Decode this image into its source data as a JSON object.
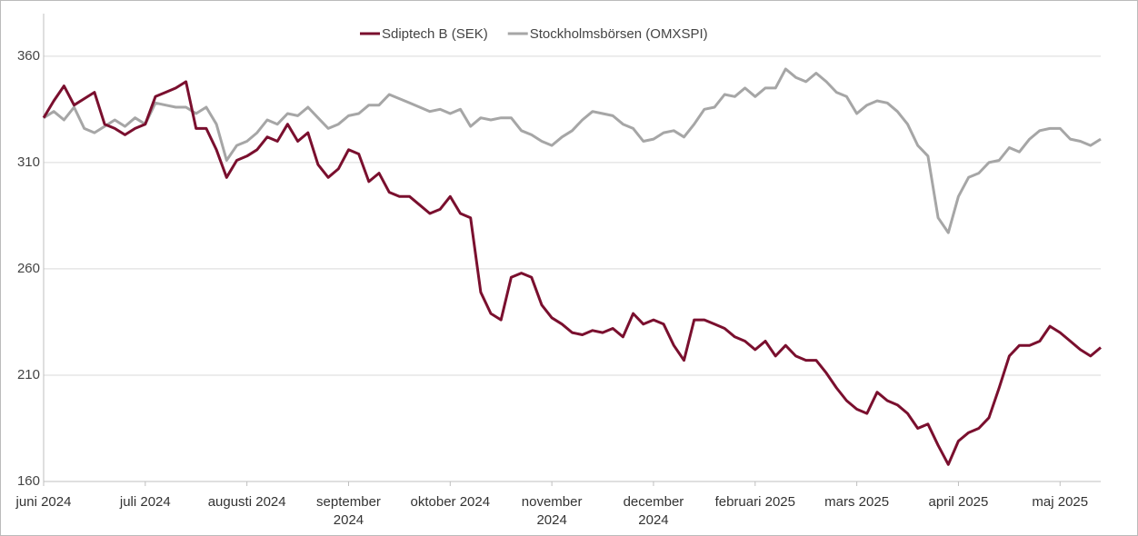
{
  "chart_data": {
    "type": "line",
    "categories": [
      "juni 2024",
      null,
      null,
      null,
      null,
      null,
      null,
      null,
      null,
      null,
      "juli 2024",
      null,
      null,
      null,
      null,
      null,
      null,
      null,
      null,
      null,
      "augusti 2024",
      null,
      null,
      null,
      null,
      null,
      null,
      null,
      null,
      null,
      "september\n2024",
      null,
      null,
      null,
      null,
      null,
      null,
      null,
      null,
      null,
      "oktober 2024",
      null,
      null,
      null,
      null,
      null,
      null,
      null,
      null,
      null,
      "november\n2024",
      null,
      null,
      null,
      null,
      null,
      null,
      null,
      null,
      null,
      "december\n2024",
      null,
      null,
      null,
      null,
      null,
      null,
      null,
      null,
      null,
      "februari 2025",
      null,
      null,
      null,
      null,
      null,
      null,
      null,
      null,
      null,
      "mars 2025",
      null,
      null,
      null,
      null,
      null,
      null,
      null,
      null,
      null,
      "april 2025",
      null,
      null,
      null,
      null,
      null,
      null,
      null,
      null,
      null,
      "maj 2025",
      null,
      null,
      null,
      null
    ],
    "series": [
      {
        "name": "Sdiptech B (SEK)",
        "color": "#7a0f2e",
        "values": [
          331,
          339,
          346,
          337,
          340,
          343,
          328,
          326,
          323,
          326,
          328,
          341,
          343,
          345,
          348,
          326,
          326,
          316,
          303,
          311,
          313,
          316,
          322,
          320,
          328,
          320,
          324,
          309,
          303,
          307,
          316,
          314,
          301,
          305,
          296,
          294,
          294,
          290,
          286,
          288,
          294,
          286,
          284,
          249,
          239,
          236,
          256,
          258,
          256,
          243,
          237,
          234,
          230,
          229,
          231,
          230,
          232,
          228,
          239,
          234,
          236,
          234,
          224,
          217,
          236,
          236,
          234,
          232,
          228,
          226,
          222,
          226,
          219,
          224,
          219,
          217,
          217,
          211,
          204,
          198,
          194,
          192,
          202,
          198,
          196,
          192,
          185,
          187,
          177,
          168,
          179,
          183,
          185,
          190,
          204,
          219,
          224,
          224,
          226,
          233,
          230,
          226,
          222,
          219,
          223
        ]
      },
      {
        "name": "Stockholmsbörsen (OMXSPI)",
        "color": "#a6a6a6",
        "values": [
          331,
          334,
          330,
          336,
          326,
          324,
          327,
          330,
          327,
          331,
          328,
          338,
          337,
          336,
          336,
          333,
          336,
          328,
          311,
          318,
          320,
          324,
          330,
          328,
          333,
          332,
          336,
          331,
          326,
          328,
          332,
          333,
          337,
          337,
          342,
          340,
          338,
          336,
          334,
          335,
          333,
          335,
          327,
          331,
          330,
          331,
          331,
          325,
          323,
          320,
          318,
          322,
          325,
          330,
          334,
          333,
          332,
          328,
          326,
          320,
          321,
          324,
          325,
          322,
          328,
          335,
          336,
          342,
          341,
          345,
          341,
          345,
          345,
          354,
          350,
          348,
          352,
          348,
          343,
          341,
          333,
          337,
          339,
          338,
          334,
          328,
          318,
          313,
          284,
          277,
          294,
          303,
          305,
          310,
          311,
          317,
          315,
          321,
          325,
          326,
          326,
          321,
          320,
          318,
          321
        ]
      }
    ],
    "ylim": [
      160,
      380
    ],
    "yticks": [
      160,
      210,
      260,
      310,
      360
    ],
    "grid": true,
    "legend": "top"
  }
}
